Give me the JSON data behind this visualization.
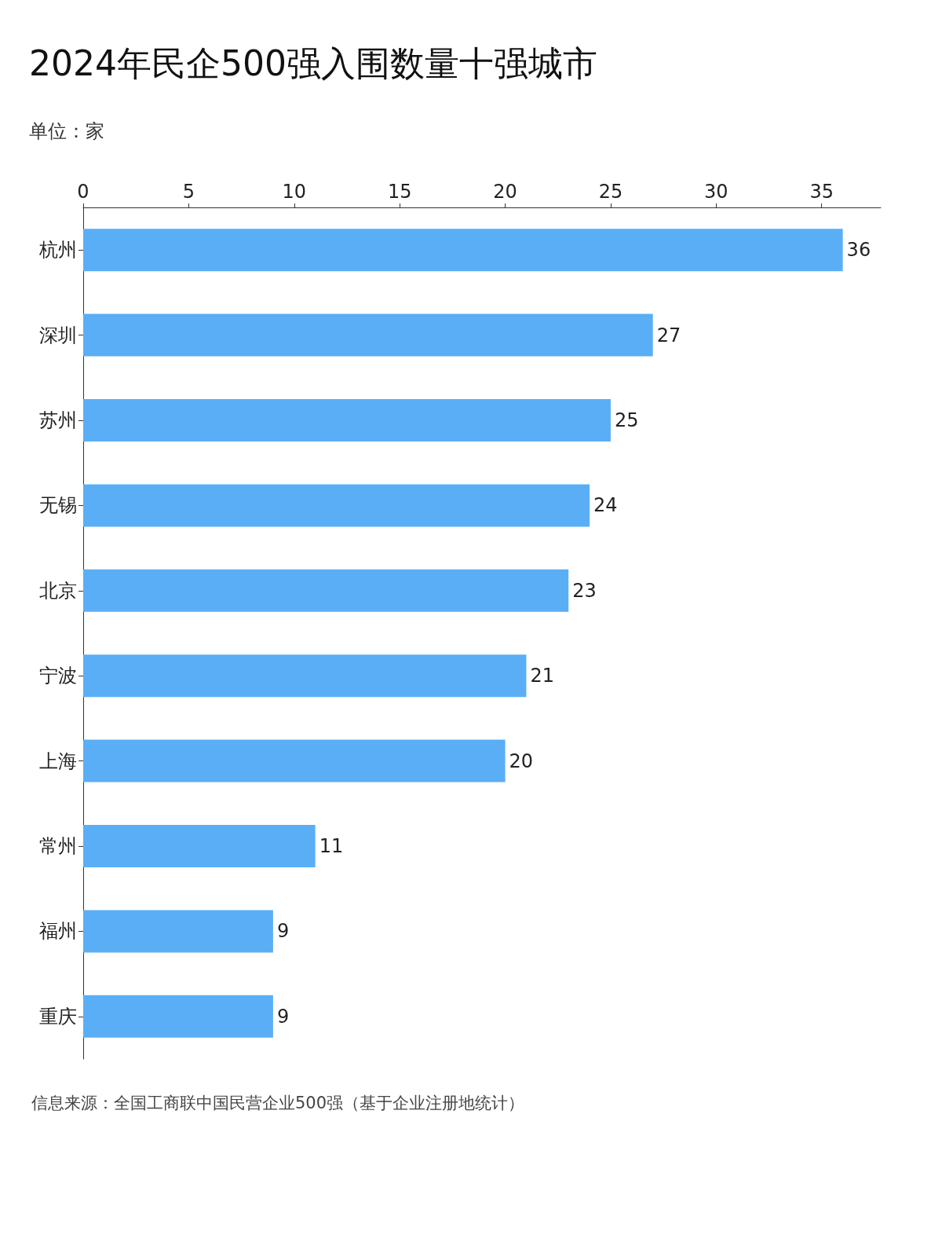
{
  "chart_data": {
    "type": "bar",
    "orientation": "horizontal",
    "title": "2024年民企500强入围数量十强城市",
    "subtitle": "单位：家",
    "categories": [
      "杭州",
      "深圳",
      "苏州",
      "无锡",
      "北京",
      "宁波",
      "上海",
      "常州",
      "福州",
      "重庆"
    ],
    "values": [
      36,
      27,
      25,
      24,
      23,
      21,
      20,
      11,
      9,
      9
    ],
    "color": "#5aaef5",
    "xlim": [
      0,
      37.8
    ],
    "xticks": [
      0,
      5,
      10,
      15,
      20,
      25,
      30,
      35
    ],
    "data_labels": true,
    "grid": false,
    "annotations": [
      "信息来源：全国工商联中国民营企业500强（基于企业注册地统计）"
    ]
  }
}
